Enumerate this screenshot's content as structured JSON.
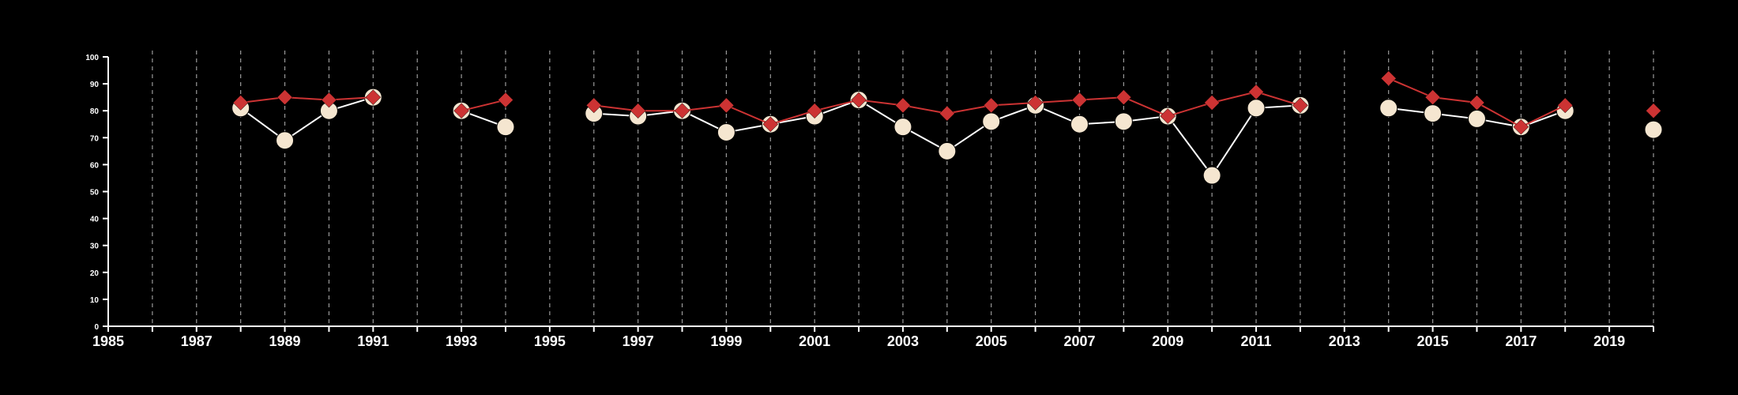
{
  "chart_data": {
    "type": "line",
    "title": "",
    "xlabel": "",
    "ylabel": "",
    "xlim": [
      1985,
      2020
    ],
    "ylim": [
      0,
      100
    ],
    "x_ticks": [
      1985,
      1987,
      1989,
      1991,
      1993,
      1995,
      1997,
      1999,
      2001,
      2003,
      2005,
      2007,
      2009,
      2011,
      2013,
      2015,
      2017,
      2019
    ],
    "y_ticks": [
      0,
      10,
      20,
      30,
      40,
      50,
      60,
      70,
      80,
      90,
      100
    ],
    "grid": "vertical dashed lines at every year",
    "legend": "none",
    "series": [
      {
        "marker": "diamond",
        "color": "#cc3333",
        "points": [
          {
            "x": 1988,
            "y": 83
          },
          {
            "x": 1989,
            "y": 85
          },
          {
            "x": 1990,
            "y": 84
          },
          {
            "x": 1991,
            "y": 85
          },
          {
            "x": 1993,
            "y": 80
          },
          {
            "x": 1994,
            "y": 84
          },
          {
            "x": 1996,
            "y": 82
          },
          {
            "x": 1997,
            "y": 80
          },
          {
            "x": 1998,
            "y": 80
          },
          {
            "x": 1999,
            "y": 82
          },
          {
            "x": 2000,
            "y": 75
          },
          {
            "x": 2001,
            "y": 80
          },
          {
            "x": 2002,
            "y": 84
          },
          {
            "x": 2003,
            "y": 82
          },
          {
            "x": 2004,
            "y": 79
          },
          {
            "x": 2005,
            "y": 82
          },
          {
            "x": 2006,
            "y": 83
          },
          {
            "x": 2007,
            "y": 84
          },
          {
            "x": 2008,
            "y": 85
          },
          {
            "x": 2009,
            "y": 78
          },
          {
            "x": 2010,
            "y": 83
          },
          {
            "x": 2011,
            "y": 87
          },
          {
            "x": 2012,
            "y": 82
          },
          {
            "x": 2014,
            "y": 92
          },
          {
            "x": 2015,
            "y": 85
          },
          {
            "x": 2016,
            "y": 83
          },
          {
            "x": 2017,
            "y": 74
          },
          {
            "x": 2018,
            "y": 82
          },
          {
            "x": 2020,
            "y": 80
          }
        ]
      },
      {
        "marker": "circle",
        "color": "#f5e6d0",
        "points": [
          {
            "x": 1988,
            "y": 81
          },
          {
            "x": 1989,
            "y": 69
          },
          {
            "x": 1990,
            "y": 80
          },
          {
            "x": 1991,
            "y": 85
          },
          {
            "x": 1993,
            "y": 80
          },
          {
            "x": 1994,
            "y": 74
          },
          {
            "x": 1996,
            "y": 79
          },
          {
            "x": 1997,
            "y": 78
          },
          {
            "x": 1998,
            "y": 80
          },
          {
            "x": 1999,
            "y": 72
          },
          {
            "x": 2000,
            "y": 75
          },
          {
            "x": 2001,
            "y": 78
          },
          {
            "x": 2002,
            "y": 84
          },
          {
            "x": 2003,
            "y": 74
          },
          {
            "x": 2004,
            "y": 65
          },
          {
            "x": 2005,
            "y": 76
          },
          {
            "x": 2006,
            "y": 82
          },
          {
            "x": 2007,
            "y": 75
          },
          {
            "x": 2008,
            "y": 76
          },
          {
            "x": 2009,
            "y": 78
          },
          {
            "x": 2010,
            "y": 56
          },
          {
            "x": 2011,
            "y": 81
          },
          {
            "x": 2012,
            "y": 82
          },
          {
            "x": 2014,
            "y": 81
          },
          {
            "x": 2015,
            "y": 79
          },
          {
            "x": 2016,
            "y": 77
          },
          {
            "x": 2017,
            "y": 74
          },
          {
            "x": 2018,
            "y": 80
          },
          {
            "x": 2020,
            "y": 73
          }
        ]
      }
    ]
  }
}
